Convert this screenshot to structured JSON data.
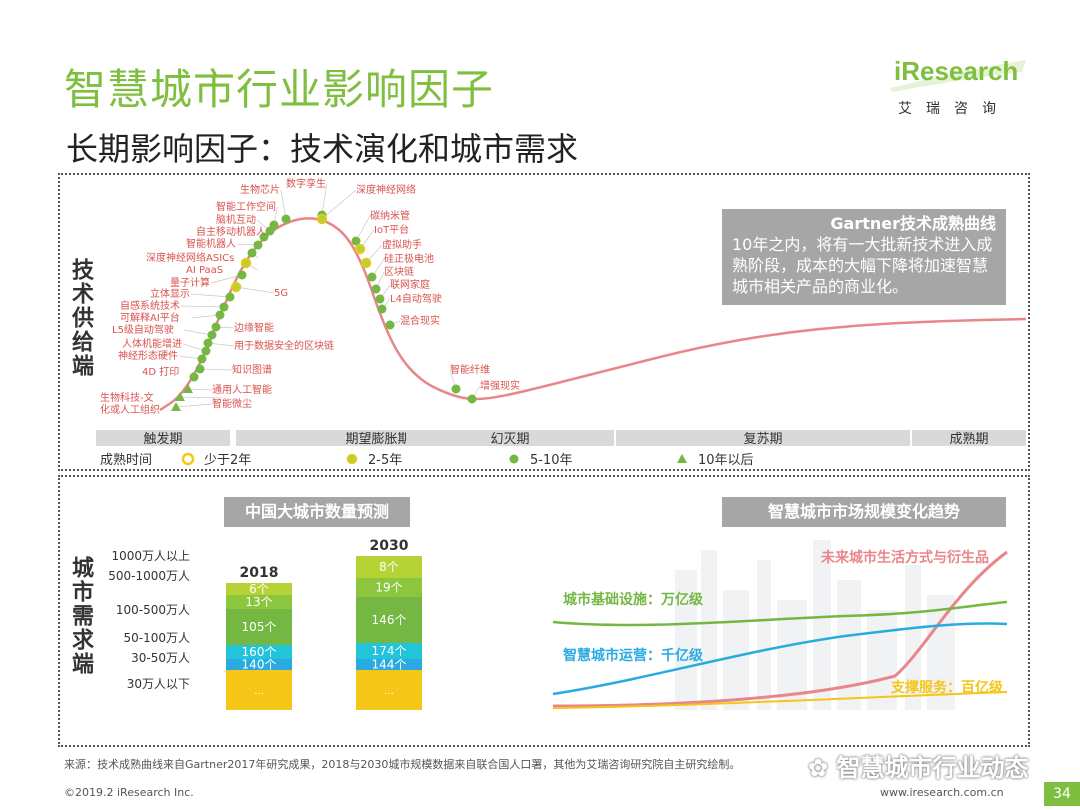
{
  "header": {
    "title": "智慧城市行业影响因子",
    "subtitle": "长期影响因子：技术演化和城市需求",
    "logo_text": "iResearch",
    "logo_cn": "艾瑞咨询"
  },
  "colors": {
    "accent_green": "#7fbf3f",
    "curve_pink": "#e8868a",
    "dot_yellow": "#f5c518",
    "dot_lime": "#b5d334",
    "dot_green": "#74b843",
    "band_gray": "#d9d9d9",
    "cyan": "#29abe2",
    "gold": "#f5c518"
  },
  "top_panel": {
    "side_label": "技术供给端",
    "gartner": {
      "title": "Gartner技术成熟曲线",
      "body": "10年之内，将有一大批新技术进入成熟阶段，成本的大幅下降将加速智慧城市相关产品的商业化。"
    },
    "phases": [
      "触发期",
      "期望膨胀期",
      "幻灭期",
      "复苏期",
      "成熟期"
    ],
    "legend": {
      "label": "成熟时间",
      "items": [
        {
          "marker": "ring-yellow",
          "text": "少于2年"
        },
        {
          "marker": "dot-lime-ring",
          "text": "2-5年"
        },
        {
          "marker": "dot-green",
          "text": "5-10年"
        },
        {
          "marker": "triangle-green",
          "text": "10年以后"
        }
      ]
    }
  },
  "hype_labels": [
    {
      "text": "生物芯片",
      "marker": "dot-green"
    },
    {
      "text": "数字孪生",
      "marker": "dot-green"
    },
    {
      "text": "深度神经网络",
      "marker": "dot-lime-ring"
    },
    {
      "text": "智能工作空间",
      "marker": "dot-green"
    },
    {
      "text": "脑机互动",
      "marker": "dot-green"
    },
    {
      "text": "碳纳米管",
      "marker": "dot-green"
    },
    {
      "text": "自主移动机器人",
      "marker": "dot-green"
    },
    {
      "text": "IoT平台",
      "marker": "dot-lime-ring"
    },
    {
      "text": "智能机器人",
      "marker": "dot-green"
    },
    {
      "text": "深度神经网络ASICs",
      "marker": "dot-green"
    },
    {
      "text": "虚拟助手",
      "marker": "dot-lime-ring"
    },
    {
      "text": "AI PaaS",
      "marker": "dot-lime-ring"
    },
    {
      "text": "硅正极电池",
      "marker": "dot-green"
    },
    {
      "text": "量子计算",
      "marker": "dot-green"
    },
    {
      "text": "区块链",
      "marker": "dot-green"
    },
    {
      "text": "5G",
      "marker": "dot-lime-ring"
    },
    {
      "text": "立体显示",
      "marker": "dot-green"
    },
    {
      "text": "联网家庭",
      "marker": "dot-green"
    },
    {
      "text": "自感系统技术",
      "marker": "dot-green"
    },
    {
      "text": "L4自动驾驶",
      "marker": "dot-green"
    },
    {
      "text": "可解释AI平台",
      "marker": "dot-green"
    },
    {
      "text": "混合现实",
      "marker": "dot-green"
    },
    {
      "text": "边缘智能",
      "marker": "dot-green"
    },
    {
      "text": "L5级自动驾驶",
      "marker": "dot-green"
    },
    {
      "text": "用于数据安全的区块链",
      "marker": "dot-green"
    },
    {
      "text": "人体机能增进",
      "marker": "dot-green"
    },
    {
      "text": "神经形态硬件",
      "marker": "dot-green"
    },
    {
      "text": "知识图谱",
      "marker": "dot-green"
    },
    {
      "text": "4D 打印",
      "marker": "dot-green"
    },
    {
      "text": "智能纤维",
      "marker": "dot-green"
    },
    {
      "text": "增强现实",
      "marker": "dot-green"
    },
    {
      "text": "通用人工智能",
      "marker": "triangle-green"
    },
    {
      "text": "生物科技-文化或人工组织",
      "marker": "triangle-green"
    },
    {
      "text": "智能微尘",
      "marker": "triangle-green"
    }
  ],
  "bottom_panel": {
    "side_label": "城市需求端",
    "left_title": "中国大城市数量预测",
    "right_title": "智慧城市市场规模变化趋势"
  },
  "chart_data": [
    {
      "type": "bar",
      "title": "中国大城市数量预测",
      "categories": [
        "2018",
        "2030"
      ],
      "stack_order": [
        "30万人以下",
        "30-50万人",
        "50-100万人",
        "100-500万人",
        "500-1000万人",
        "1000万人以上"
      ],
      "series": [
        {
          "name": "30万人以下",
          "labels": [
            "...",
            "..."
          ],
          "color": "#f5c518"
        },
        {
          "name": "30-50万人",
          "labels": [
            "140个",
            "144个"
          ],
          "values": [
            140,
            144
          ],
          "color": "#29abe2"
        },
        {
          "name": "50-100万人",
          "labels": [
            "160个",
            "174个"
          ],
          "values": [
            160,
            174
          ],
          "color": "#21c4d9"
        },
        {
          "name": "100-500万人",
          "labels": [
            "105个",
            "146个"
          ],
          "values": [
            105,
            146
          ],
          "color": "#74b843"
        },
        {
          "name": "500-1000万人",
          "labels": [
            "13个",
            "19个"
          ],
          "values": [
            13,
            19
          ],
          "color": "#8cc63f"
        },
        {
          "name": "1000万人以上",
          "labels": [
            "6个",
            "8个"
          ],
          "values": [
            6,
            8
          ],
          "color": "#b5d334"
        }
      ]
    },
    {
      "type": "line",
      "title": "智慧城市市场规模变化趋势",
      "series": [
        {
          "name": "未来城市生活方式与衍生品",
          "color": "#e8868a"
        },
        {
          "name": "城市基础设施：万亿级",
          "color": "#74b843"
        },
        {
          "name": "智慧城市运营：千亿级",
          "color": "#29abe2"
        },
        {
          "name": "支撑服务：百亿级",
          "color": "#f5c518"
        }
      ]
    }
  ],
  "footer": {
    "source": "来源：技术成熟曲线来自Gartner2017年研究成果，2018与2030城市规模数据来自联合国人口署，其他为艾瑞咨询研究院自主研究绘制。",
    "copyright": "©2019.2 iResearch Inc.",
    "url": "www.iresearch.com.cn",
    "page": "34",
    "watermark": "智慧城市行业动态"
  }
}
